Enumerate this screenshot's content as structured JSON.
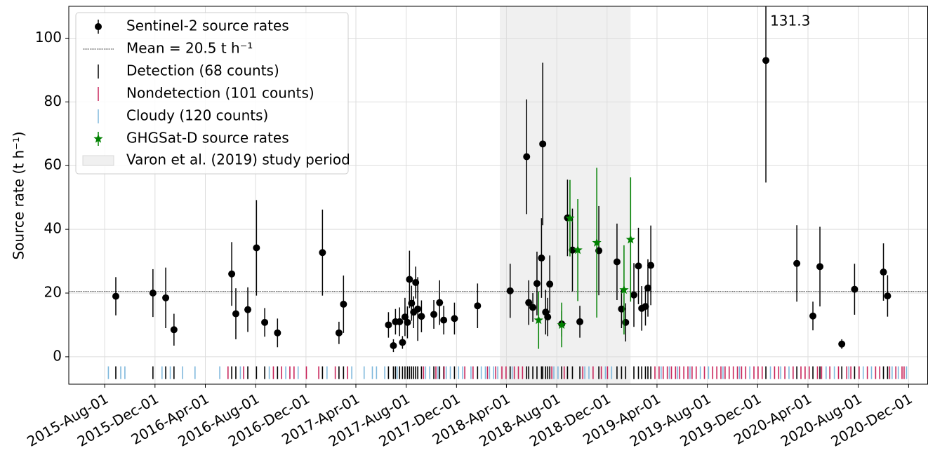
{
  "chart_data": {
    "type": "errorbar_timeseries",
    "ylabel": "Source rate (t h⁻¹)",
    "xlim": [
      "2015-05-06",
      "2021-01-17"
    ],
    "ylim": [
      -8.6,
      110
    ],
    "yticks": [
      0,
      20,
      40,
      60,
      80,
      100
    ],
    "xticks": [
      {
        "value": "2015-08-01",
        "label": "2015-Aug-01"
      },
      {
        "value": "2015-12-01",
        "label": "2015-Dec-01"
      },
      {
        "value": "2016-04-01",
        "label": "2016-Apr-01"
      },
      {
        "value": "2016-08-01",
        "label": "2016-Aug-01"
      },
      {
        "value": "2016-12-01",
        "label": "2016-Dec-01"
      },
      {
        "value": "2017-04-01",
        "label": "2017-Apr-01"
      },
      {
        "value": "2017-08-01",
        "label": "2017-Aug-01"
      },
      {
        "value": "2017-12-01",
        "label": "2017-Dec-01"
      },
      {
        "value": "2018-04-01",
        "label": "2018-Apr-01"
      },
      {
        "value": "2018-08-01",
        "label": "2018-Aug-01"
      },
      {
        "value": "2018-12-01",
        "label": "2018-Dec-01"
      },
      {
        "value": "2019-04-01",
        "label": "2019-Apr-01"
      },
      {
        "value": "2019-08-01",
        "label": "2019-Aug-01"
      },
      {
        "value": "2019-12-01",
        "label": "2019-Dec-01"
      },
      {
        "value": "2020-04-01",
        "label": "2020-Apr-01"
      },
      {
        "value": "2020-08-01",
        "label": "2020-Aug-01"
      },
      {
        "value": "2020-12-01",
        "label": "2020-Dec-01"
      }
    ],
    "grid": true,
    "legend": "upper left",
    "series": [
      {
        "name": "Sentinel-2 source rates",
        "color": "#000000",
        "marker": "circle",
        "x": [
          "2015-08-28",
          "2015-11-26",
          "2015-12-27",
          "2016-01-16",
          "2016-06-04",
          "2016-06-14",
          "2016-07-13",
          "2016-08-03",
          "2016-08-23",
          "2016-09-23",
          "2017-01-10",
          "2017-02-19",
          "2017-03-02",
          "2017-06-19",
          "2017-07-01",
          "2017-07-06",
          "2017-07-16",
          "2017-07-23",
          "2017-07-29",
          "2017-08-04",
          "2017-08-09",
          "2017-08-14",
          "2017-08-19",
          "2017-08-24",
          "2017-08-29",
          "2017-09-07",
          "2017-10-07",
          "2017-10-21",
          "2017-10-31",
          "2017-11-26",
          "2018-01-21",
          "2018-04-10",
          "2018-05-20",
          "2018-05-25",
          "2018-06-04",
          "2018-06-14",
          "2018-06-25",
          "2018-06-28",
          "2018-07-05",
          "2018-07-10",
          "2018-07-15",
          "2018-08-13",
          "2018-08-27",
          "2018-09-08",
          "2018-09-26",
          "2018-11-11",
          "2018-12-25",
          "2019-01-05",
          "2019-01-15",
          "2019-02-04",
          "2019-02-15",
          "2019-02-23",
          "2019-03-04",
          "2019-03-10",
          "2019-03-17",
          "2019-12-21",
          "2020-03-05",
          "2020-04-13",
          "2020-04-30",
          "2020-06-22",
          "2020-07-23",
          "2020-10-01",
          "2020-10-11"
        ],
        "values": [
          19,
          20,
          18.5,
          8.5,
          26,
          13.5,
          14.8,
          34.2,
          10.8,
          7.5,
          32.7,
          7.5,
          16.5,
          10,
          3.5,
          11,
          11,
          4.5,
          12.5,
          10.8,
          24.3,
          16.8,
          14,
          23.3,
          15,
          12.7,
          13.3,
          17,
          11.5,
          12,
          16,
          20.7,
          62.8,
          17,
          15.5,
          23,
          31,
          66.8,
          14,
          12.5,
          22.8,
          10.3,
          43.6,
          33.5,
          11,
          33.3,
          29.8,
          15,
          10.8,
          19.4,
          28.5,
          15.2,
          15.8,
          21.6,
          28.7,
          93,
          29.3,
          12.8,
          28.3,
          4,
          21.2,
          26.6,
          19.1
        ],
        "errors": [
          6,
          7.5,
          9.5,
          5,
          10,
          8,
          7,
          15,
          4.5,
          4.5,
          13.5,
          3.5,
          9,
          4,
          2,
          4,
          4.5,
          2,
          6,
          5,
          9,
          5.5,
          5,
          5,
          10,
          5,
          4.5,
          7,
          4.5,
          5,
          7,
          8.5,
          18,
          7,
          4.5,
          10,
          12.5,
          25.5,
          7,
          6,
          9,
          4,
          12,
          13,
          5,
          14,
          12,
          6,
          6,
          10,
          12,
          7,
          6,
          9,
          12.5,
          38.3,
          12,
          4.5,
          12.5,
          1.5,
          8,
          9,
          6.5
        ]
      },
      {
        "name": "GHGSat-D source rates",
        "color": "#008000",
        "marker": "star",
        "x": [
          "2018-06-18",
          "2018-08-13",
          "2018-09-02",
          "2018-09-21",
          "2018-11-06",
          "2019-01-11",
          "2019-01-27"
        ],
        "values": [
          11.5,
          10,
          43.5,
          33.5,
          35.8,
          21,
          36.8
        ],
        "errors": [
          9,
          7,
          12,
          16,
          23.5,
          14,
          19.5
        ]
      }
    ],
    "mean": {
      "value": 20.5,
      "label": "Mean = 20.5 t h⁻¹"
    },
    "rug": [
      {
        "name": "Detection (68 counts)",
        "color": "#000000",
        "x": [
          "2015-08-28",
          "2015-11-26",
          "2015-12-27",
          "2016-01-16",
          "2016-06-04",
          "2016-06-14",
          "2016-07-13",
          "2016-08-03",
          "2016-08-23",
          "2016-09-23",
          "2017-01-10",
          "2017-02-19",
          "2017-03-02",
          "2017-06-19",
          "2017-07-01",
          "2017-07-06",
          "2017-07-16",
          "2017-07-23",
          "2017-07-29",
          "2017-08-04",
          "2017-08-09",
          "2017-08-14",
          "2017-08-19",
          "2017-08-24",
          "2017-08-29",
          "2017-09-07",
          "2017-10-07",
          "2017-10-21",
          "2017-10-31",
          "2017-11-26",
          "2018-01-21",
          "2018-04-10",
          "2018-05-20",
          "2018-05-25",
          "2018-06-04",
          "2018-06-14",
          "2018-06-25",
          "2018-06-28",
          "2018-07-05",
          "2018-07-10",
          "2018-07-15",
          "2018-08-13",
          "2018-08-27",
          "2018-09-08",
          "2018-09-26",
          "2018-11-11",
          "2018-12-25",
          "2019-01-05",
          "2019-01-15",
          "2019-02-04",
          "2019-02-15",
          "2019-02-23",
          "2019-03-04",
          "2019-03-10",
          "2019-03-17",
          "2019-12-21",
          "2020-03-05",
          "2020-04-13",
          "2020-04-30",
          "2020-06-22",
          "2020-07-23",
          "2020-10-01",
          "2020-10-11"
        ]
      },
      {
        "name": "Nondetection (101 counts)",
        "color": "#c8245a",
        "x": [
          "2016-05-26",
          "2016-07-03",
          "2016-09-13",
          "2016-10-03",
          "2016-10-23",
          "2016-11-02",
          "2016-12-02",
          "2017-01-01",
          "2017-02-10",
          "2017-03-12",
          "2017-09-12",
          "2017-10-12",
          "2017-11-01",
          "2017-12-21",
          "2018-01-10",
          "2018-02-14",
          "2018-03-06",
          "2018-03-21",
          "2018-03-31",
          "2018-04-20",
          "2018-04-30",
          "2018-05-10",
          "2018-07-20",
          "2018-08-19",
          "2018-10-03",
          "2018-10-28",
          "2018-11-17",
          "2018-12-02",
          "2019-03-27",
          "2019-04-06",
          "2019-04-16",
          "2019-04-26",
          "2019-05-06",
          "2019-05-16",
          "2019-05-26",
          "2019-06-05",
          "2019-06-15",
          "2019-06-25",
          "2019-07-05",
          "2019-07-25",
          "2019-08-14",
          "2019-08-24",
          "2019-09-03",
          "2019-09-13",
          "2019-09-23",
          "2019-10-03",
          "2019-10-13",
          "2019-10-23",
          "2019-11-02",
          "2019-11-22",
          "2019-12-02",
          "2019-12-12",
          "2020-01-11",
          "2020-01-21",
          "2020-02-05",
          "2020-02-25",
          "2020-03-15",
          "2020-03-25",
          "2020-04-04",
          "2020-04-24",
          "2020-05-04",
          "2020-05-24",
          "2020-06-14",
          "2020-07-04",
          "2020-07-14",
          "2020-08-03",
          "2020-08-23",
          "2020-09-12",
          "2020-09-22",
          "2020-10-16",
          "2020-10-31",
          "2020-11-15",
          "2020-11-20"
        ]
      },
      {
        "name": "Cloudy (120 counts)",
        "color": "#7fb8dc",
        "x": [
          "2015-08-10",
          "2015-09-09",
          "2015-09-19",
          "2015-12-18",
          "2016-01-07",
          "2016-02-06",
          "2016-03-07",
          "2016-05-06",
          "2016-06-25",
          "2016-09-03",
          "2016-10-13",
          "2016-11-12",
          "2017-01-21",
          "2017-03-22",
          "2017-04-21",
          "2017-05-11",
          "2017-05-21",
          "2017-06-10",
          "2017-07-10",
          "2017-09-17",
          "2017-09-27",
          "2017-10-17",
          "2017-11-06",
          "2017-11-16",
          "2017-12-06",
          "2017-12-16",
          "2018-01-05",
          "2018-01-30",
          "2018-02-09",
          "2018-02-19",
          "2018-03-01",
          "2018-03-11",
          "2018-04-15",
          "2018-07-25",
          "2018-08-04",
          "2018-10-08",
          "2018-10-18",
          "2018-11-27",
          "2018-12-12",
          "2019-04-11",
          "2019-05-01",
          "2019-05-21",
          "2019-06-20",
          "2019-07-15",
          "2019-08-04",
          "2019-09-08",
          "2019-10-18",
          "2019-11-12",
          "2020-01-01",
          "2020-01-26",
          "2020-02-15",
          "2020-05-15",
          "2020-06-04",
          "2020-07-09",
          "2020-08-13",
          "2020-09-02",
          "2020-10-22",
          "2020-11-06",
          "2020-11-26"
        ]
      }
    ],
    "shade": {
      "label": "Varon et al. (2019) study period",
      "x": [
        "2018-03-16",
        "2019-01-27"
      ],
      "color": "#f0f0f0"
    },
    "annotation": {
      "text": "131.3",
      "x": "2019-12-21"
    }
  }
}
